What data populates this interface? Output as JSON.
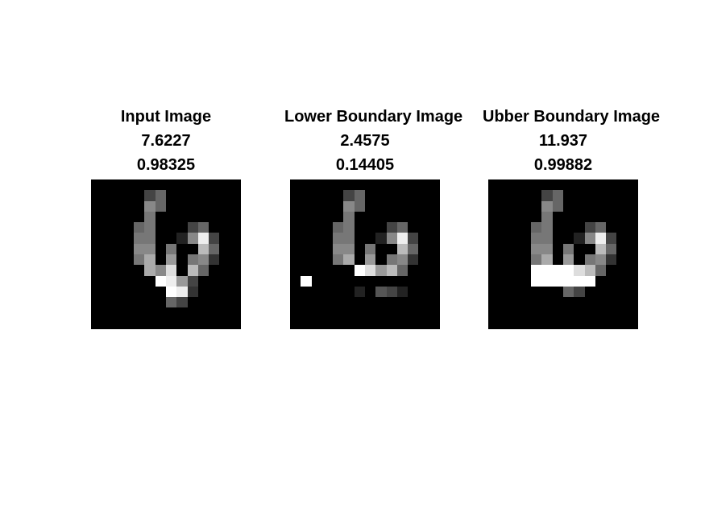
{
  "panels": [
    {
      "title": "Input Image",
      "value1": "7.6227",
      "value2": "0.98325",
      "pixels": [
        "00000000000000",
        "0000046000000",
        "00000860000000",
        "00000700000000",
        "00006700046000",
        "0000770028e400",
        "0000880700b600",
        "00007a09078300",
        "00000a8d0b6000",
        "000000fe940000",
        "0000000fe30000",
        "0000000640000",
        "00000000000000",
        "00000000000000"
      ]
    },
    {
      "title": "Lower Boundary Image",
      "value1": "2.4575",
      "value2": "0.14405",
      "pixels": [
        "00000000000000",
        "0000046000000",
        "00000860000000",
        "00000700000000",
        "00006700046000",
        "0000770028e400",
        "0000880700b600",
        "00007a0907830",
        "000000fd9b6000",
        "0f000000000000",
        "00000020542000",
        "00000000000000",
        "00000000000000",
        "00000000000000"
      ]
    },
    {
      "title": "Ubber Boundary Image",
      "value1": "11.937",
      "value2": "0.99882",
      "pixels": [
        "00000000000000",
        "0000046000000",
        "00000860000000",
        "00000700000000",
        "00006700046000",
        "0000770028e400",
        "0000880700b600",
        "00007a09078300",
        "0000ffffdb6000",
        "0000ffffff0000",
        "0000000640000",
        "00000000000000",
        "00000000000000",
        "00000000000000"
      ]
    }
  ]
}
